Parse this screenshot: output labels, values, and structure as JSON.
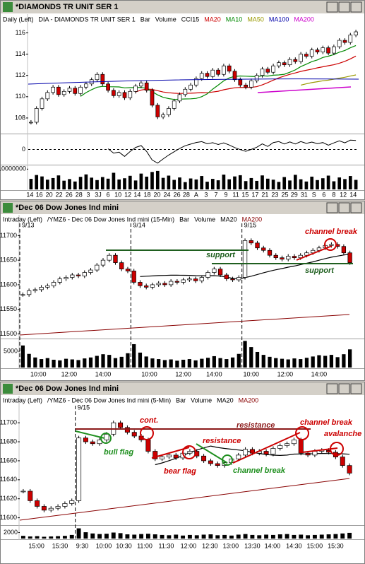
{
  "windows": [
    {
      "title": "*DIAMONDS TR UNIT SER 1",
      "legend": [
        {
          "text": "Daily (Left)",
          "color": "#000000"
        },
        {
          "text": "DIA - DIAMONDS TR UNIT SER 1",
          "color": "#000000"
        },
        {
          "text": "Bar",
          "color": "#000000"
        },
        {
          "text": "Volume",
          "color": "#000000"
        },
        {
          "text": "CCI15",
          "color": "#000000"
        },
        {
          "text": "MA20",
          "color": "#cc0000"
        },
        {
          "text": "MA10",
          "color": "#008800"
        },
        {
          "text": "MA50",
          "color": "#999900"
        },
        {
          "text": "MA100",
          "color": "#0000aa"
        },
        {
          "text": "MA200",
          "color": "#cc00cc"
        }
      ],
      "type": "candlestick",
      "up_color": "#ffffff",
      "down_color": "#cc0000",
      "closes": [
        107.6,
        108.9,
        109.8,
        110.4,
        110.9,
        110.2,
        110.5,
        110.8,
        110.3,
        110.9,
        111.2,
        111.6,
        112.1,
        111.2,
        110.6,
        110.1,
        110.4,
        109.9,
        110.5,
        111.0,
        111.3,
        110.6,
        109.2,
        108.1,
        108.3,
        108.9,
        109.6,
        110.2,
        110.7,
        111.1,
        111.7,
        112.2,
        111.9,
        112.5,
        112.1,
        112.9,
        112.4,
        111.6,
        111.1,
        110.9,
        111.5,
        112.0,
        112.6,
        112.3,
        112.9,
        113.2,
        113.0,
        113.5,
        113.3,
        114.0,
        113.8,
        114.4,
        114.2,
        114.6,
        114.1,
        114.7,
        115.3,
        115.1,
        115.8,
        116.1
      ],
      "ylim": [
        106.6,
        116.7
      ],
      "yticks": [
        108,
        110,
        112,
        114,
        116
      ],
      "cci": {
        "ylim": [
          -250,
          250
        ],
        "yticks": [
          0
        ],
        "color": "#000000"
      },
      "volume": {
        "ylim": [
          0,
          11500000
        ],
        "yticks": [
          10000000
        ],
        "color": "#000000",
        "values": [
          5200000,
          7100000,
          6400000,
          4800000,
          5600000,
          6900000,
          4300000,
          5100000,
          3900000,
          6200000,
          7400000,
          5800000,
          4600000,
          6100000,
          5300000,
          8200000,
          4900000,
          5500000,
          6700000,
          4400000,
          7800000,
          6300000,
          8600000,
          9100000,
          5700000,
          6800000,
          4700000,
          5900000,
          3600000,
          5400000,
          4900000,
          6600000,
          3800000,
          5200000,
          4500000,
          7300000,
          5000000,
          6400000,
          7000000,
          4100000,
          5600000,
          4200000,
          6900000,
          5300000,
          4800000,
          3700000,
          6100000,
          4400000,
          7200000,
          5000000,
          3900000,
          6300000,
          4600000,
          5500000,
          6800000,
          4000000,
          5900000,
          5100000,
          6600000,
          4700000
        ]
      },
      "xticks": [
        {
          "value": -0.2,
          "label": "14"
        },
        {
          "value": 1.5,
          "label": "16"
        },
        {
          "value": 3.3,
          "label": "20"
        },
        {
          "value": 5.1,
          "label": "22"
        },
        {
          "value": 6.9,
          "label": "26"
        },
        {
          "value": 8.7,
          "label": "28"
        },
        {
          "value": 10.4,
          "label": "3"
        },
        {
          "value": 12.2,
          "label": "3J"
        },
        {
          "value": 14.0,
          "label": "6"
        },
        {
          "value": 15.8,
          "label": "10"
        },
        {
          "value": 17.6,
          "label": "12"
        },
        {
          "value": 19.3,
          "label": "14"
        },
        {
          "value": 21.1,
          "label": "18"
        },
        {
          "value": 22.9,
          "label": "20"
        },
        {
          "value": 24.7,
          "label": "24"
        },
        {
          "value": 26.5,
          "label": "26"
        },
        {
          "value": 28.2,
          "label": "28"
        },
        {
          "value": 30.0,
          "label": "A"
        },
        {
          "value": 31.8,
          "label": "3"
        },
        {
          "value": 33.6,
          "label": "7"
        },
        {
          "value": 35.4,
          "label": "9"
        },
        {
          "value": 37.2,
          "label": "11"
        },
        {
          "value": 38.9,
          "label": "15"
        },
        {
          "value": 40.7,
          "label": "17"
        },
        {
          "value": 42.5,
          "label": "21"
        },
        {
          "value": 44.3,
          "label": "23"
        },
        {
          "value": 46.1,
          "label": "25"
        },
        {
          "value": 47.8,
          "label": "29"
        },
        {
          "value": 49.6,
          "label": "31"
        },
        {
          "value": 51.4,
          "label": "S"
        },
        {
          "value": 53.2,
          "label": "6"
        },
        {
          "value": 55.0,
          "label": "8"
        },
        {
          "value": 56.7,
          "label": "12"
        },
        {
          "value": 58.5,
          "label": "14"
        }
      ],
      "sessions": [],
      "annotations": []
    },
    {
      "title": "*Dec 06  Dow Jones Ind mini",
      "legend": [
        {
          "text": "Intraday (Left)",
          "color": "#000000"
        },
        {
          "text": "/YMZ6 - Dec 06  Dow Jones Ind mini (15-Min)",
          "color": "#000000"
        },
        {
          "text": "Bar",
          "color": "#000000"
        },
        {
          "text": "Volume",
          "color": "#000000"
        },
        {
          "text": "MA20",
          "color": "#000000"
        },
        {
          "text": "MA200",
          "color": "#880000"
        }
      ],
      "type": "candlestick",
      "up_color": "#ffffff",
      "down_color": "#cc0000",
      "closes": [
        11580,
        11588,
        11590,
        11595,
        11598,
        11605,
        11612,
        11615,
        11620,
        11618,
        11625,
        11630,
        11640,
        11650,
        11660,
        11645,
        11632,
        11628,
        11605,
        11598,
        11595,
        11600,
        11603,
        11600,
        11607,
        11605,
        11610,
        11612,
        11608,
        11615,
        11625,
        11632,
        11620,
        11612,
        11610,
        11615,
        11690,
        11685,
        11675,
        11670,
        11660,
        11655,
        11652,
        11658,
        11655,
        11660,
        11665,
        11670,
        11675,
        11680,
        11682,
        11678,
        11665,
        11645
      ],
      "ylim": [
        11492,
        11725
      ],
      "yticks": [
        11500,
        11550,
        11600,
        11650,
        11700
      ],
      "volume": {
        "ylim": [
          0,
          8500
        ],
        "yticks": [
          5000
        ],
        "color": "#000000",
        "values": [
          6800,
          4200,
          3100,
          2600,
          2900,
          2400,
          2200,
          2700,
          2500,
          2300,
          2800,
          3100,
          3600,
          4100,
          3900,
          2900,
          3300,
          4400,
          7200,
          4600,
          3400,
          2800,
          2600,
          2300,
          2500,
          2100,
          2400,
          2600,
          2200,
          2700,
          3000,
          3500,
          2900,
          2600,
          3100,
          4200,
          8200,
          6300,
          4800,
          3900,
          3300,
          2900,
          2700,
          2500,
          2800,
          2600,
          3000,
          3400,
          3800,
          3600,
          3900,
          3200,
          4100,
          5600
        ]
      },
      "xticks": [
        {
          "value": 2.5,
          "label": "10:00"
        },
        {
          "value": 7.5,
          "label": "12:00"
        },
        {
          "value": 13,
          "label": "14:00"
        },
        {
          "value": 20.5,
          "label": "10:00"
        },
        {
          "value": 26,
          "label": "12:00"
        },
        {
          "value": 31,
          "label": "14:00"
        },
        {
          "value": 37,
          "label": "10:00"
        },
        {
          "value": 42.5,
          "label": "12:00"
        },
        {
          "value": 48,
          "label": "14:00"
        }
      ],
      "sessions": [
        {
          "value": 0,
          "label": "9/13"
        },
        {
          "value": 18,
          "label": "9/14"
        },
        {
          "value": 36,
          "label": "9/15"
        }
      ],
      "annotations": [
        "channel break",
        "support",
        "support"
      ]
    },
    {
      "title": "*Dec 06  Dow Jones Ind mini",
      "legend": [
        {
          "text": "Intraday (Left)",
          "color": "#000000"
        },
        {
          "text": "/YMZ6 - Dec 06  Dow Jones Ind mini (5-Min)",
          "color": "#000000"
        },
        {
          "text": "Bar",
          "color": "#000000"
        },
        {
          "text": "Volume",
          "color": "#000000"
        },
        {
          "text": "MA20",
          "color": "#000000"
        },
        {
          "text": "MA200",
          "color": "#880000"
        }
      ],
      "type": "candlestick",
      "up_color": "#ffffff",
      "down_color": "#cc0000",
      "closes": [
        11628,
        11618,
        11612,
        11608,
        11610,
        11612,
        11615,
        11618,
        11684,
        11680,
        11678,
        11682,
        11688,
        11700,
        11695,
        11690,
        11686,
        11682,
        11670,
        11662,
        11664,
        11666,
        11663,
        11668,
        11670,
        11665,
        11660,
        11657,
        11655,
        11658,
        11662,
        11666,
        11672,
        11668,
        11670,
        11667,
        11673,
        11676,
        11678,
        11682,
        11668,
        11666,
        11670,
        11671,
        11669,
        11664,
        11655,
        11647
      ],
      "ylim": [
        11593,
        11718
      ],
      "yticks": [
        11600,
        11620,
        11640,
        11660,
        11680,
        11700
      ],
      "volume": {
        "ylim": [
          0,
          4000
        ],
        "yticks": [
          2000
        ],
        "color": "#000000",
        "values": [
          900,
          700,
          800,
          600,
          700,
          800,
          900,
          1200,
          3400,
          2100,
          1700,
          1500,
          1600,
          2000,
          1800,
          1400,
          1300,
          1500,
          1600,
          1400,
          1200,
          1100,
          1300,
          1000,
          1200,
          1100,
          1300,
          1400,
          1100,
          1200,
          1000,
          1300,
          1500,
          1200,
          1100,
          1300,
          1200,
          1400,
          1500,
          1200,
          1300,
          1100,
          1200,
          1300,
          1400,
          1500,
          1700,
          1900
        ]
      },
      "xticks": [
        {
          "value": 1.9,
          "label": "15:00"
        },
        {
          "value": 5.3,
          "label": "15:30"
        },
        {
          "value": 8.5,
          "label": "9:30"
        },
        {
          "value": 11.6,
          "label": "10:00"
        },
        {
          "value": 14.5,
          "label": "10:30"
        },
        {
          "value": 17.5,
          "label": "11:00"
        },
        {
          "value": 20.6,
          "label": "11:30"
        },
        {
          "value": 23.8,
          "label": "12:00"
        },
        {
          "value": 26.9,
          "label": "12:30"
        },
        {
          "value": 29.9,
          "label": "13:00"
        },
        {
          "value": 33,
          "label": "13:30"
        },
        {
          "value": 35.9,
          "label": "14:00"
        },
        {
          "value": 39,
          "label": "14:30"
        },
        {
          "value": 42,
          "label": "15:00"
        },
        {
          "value": 45,
          "label": "15:30"
        }
      ],
      "sessions": [
        {
          "value": 8,
          "label": "9/15"
        }
      ],
      "annotations": [
        "cont.",
        "bull flag",
        "bear flag",
        "resistance",
        "resistance",
        "channel break",
        "channel break",
        "avalanche"
      ]
    }
  ]
}
